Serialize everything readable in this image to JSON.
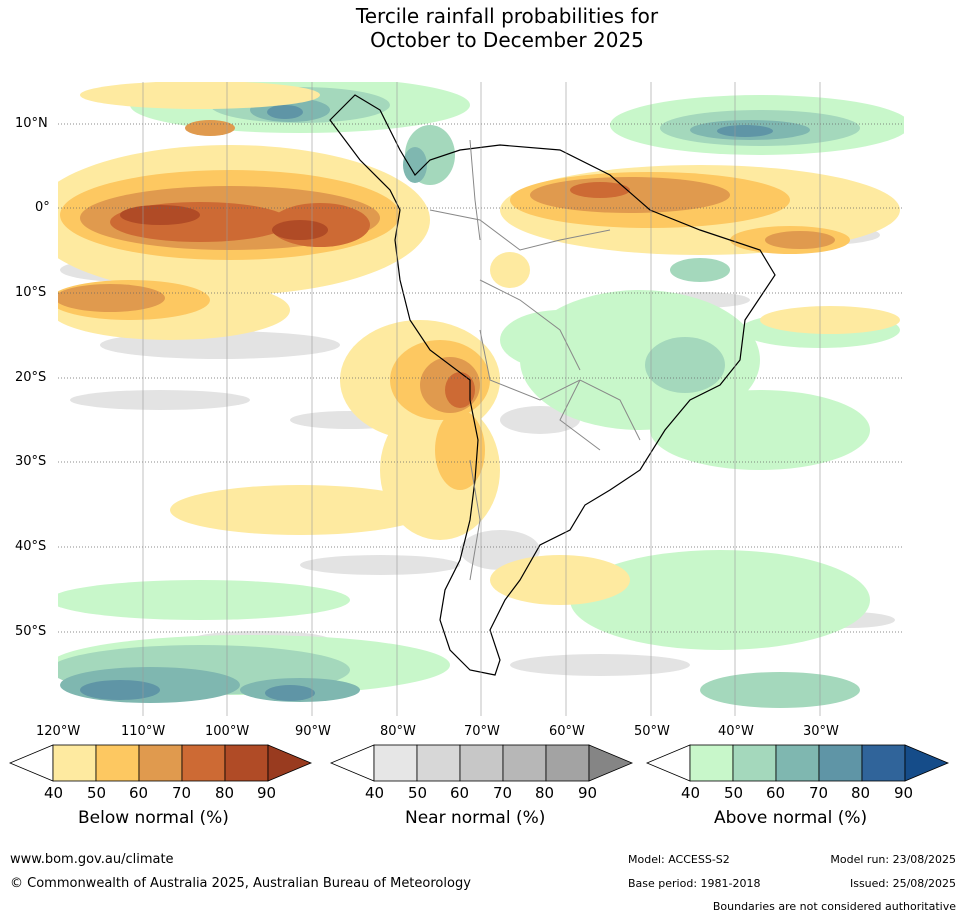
{
  "title_line1": "Tercile rainfall probabilities for",
  "title_line2": "October to December 2025",
  "lat_labels": [
    "10°N",
    "0°",
    "10°S",
    "20°S",
    "30°S",
    "40°S",
    "50°S"
  ],
  "lon_labels": [
    "120°W",
    "110°W",
    "100°W",
    "90°W",
    "80°W",
    "70°W",
    "60°W",
    "50°W",
    "40°W",
    "30°W"
  ],
  "colorbars": [
    {
      "title": "Below normal (%)",
      "ticks": [
        "40",
        "50",
        "60",
        "70",
        "80",
        "90"
      ],
      "colors": [
        "#ffffff",
        "#feeaa0",
        "#fdc861",
        "#e09a4e",
        "#cd6a34",
        "#b04b26",
        "#993b1f"
      ]
    },
    {
      "title": "Near normal (%)",
      "ticks": [
        "40",
        "50",
        "60",
        "70",
        "80",
        "90"
      ],
      "colors": [
        "#ffffff",
        "#e6e6e6",
        "#d7d7d7",
        "#c7c7c7",
        "#b7b7b7",
        "#a3a3a3",
        "#858585"
      ]
    },
    {
      "title": "Above normal (%)",
      "ticks": [
        "40",
        "50",
        "60",
        "70",
        "80",
        "90"
      ],
      "colors": [
        "#ffffff",
        "#c8f7ca",
        "#a4d8bc",
        "#7fb7b0",
        "#5f95a6",
        "#30649a",
        "#154c89"
      ]
    }
  ],
  "footer": {
    "website": "www.bom.gov.au/climate",
    "copyright": "© Commonwealth of Australia 2025, Australian Bureau of Meteorology",
    "model": "Model: ACCESS-S2",
    "base_period": "Base period: 1981-2018",
    "model_run": "Model run: 23/08/2025",
    "issued": "Issued: 25/08/2025",
    "disclaimer": "Boundaries are not considered authoritative"
  }
}
